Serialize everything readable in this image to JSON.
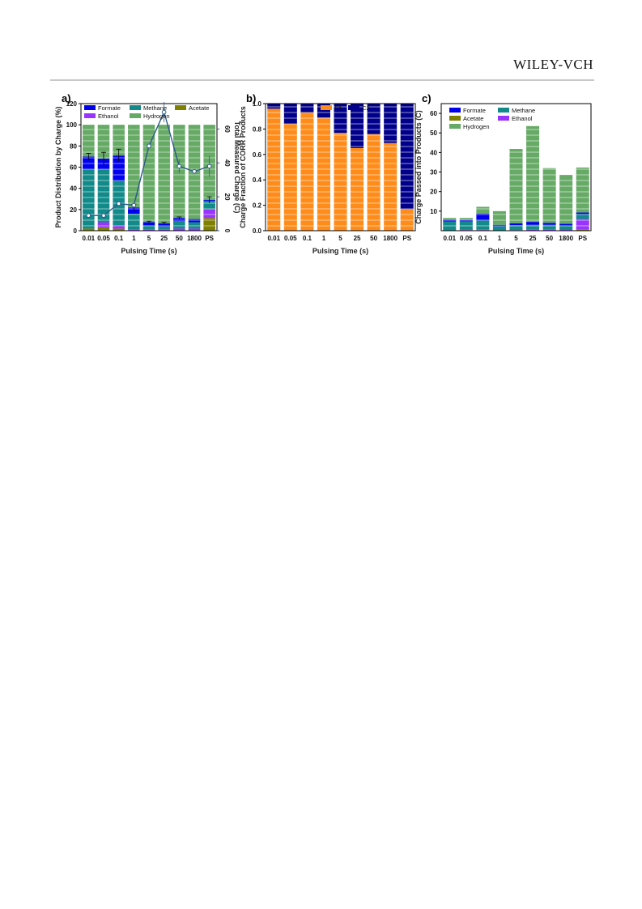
{
  "header": {
    "publisher": "WILEY-VCH"
  },
  "chart_data": [
    {
      "panel": "a)",
      "type": "bar",
      "stacked": true,
      "categories": [
        "0.01",
        "0.05",
        "0.1",
        "1",
        "5",
        "25",
        "50",
        "1800",
        "PS"
      ],
      "xlabel": "Pulsing Time (s)",
      "ylabel": "Product Distribution by Charge (%)",
      "ylim": [
        0,
        120
      ],
      "yticks": [
        0,
        20,
        40,
        60,
        80,
        100,
        120
      ],
      "y2label": "Total Measured Charge (C)",
      "y2lim": [
        0,
        75
      ],
      "y2ticks": [
        0,
        20,
        40,
        60
      ],
      "legend": [
        "Formate",
        "Methane",
        "Acetate",
        "Ethanol",
        "Hydrogen"
      ],
      "series": [
        {
          "name": "Acetate",
          "color": "#7f7f00",
          "values": [
            2,
            3,
            2,
            0,
            0,
            0,
            0,
            0,
            12
          ]
        },
        {
          "name": "Ethanol",
          "color": "#9933ff",
          "values": [
            0,
            5,
            3,
            1,
            1,
            1,
            2,
            2,
            8
          ]
        },
        {
          "name": "Methane",
          "color": "#138a8a",
          "values": [
            56,
            50,
            42,
            15,
            4,
            3,
            7,
            6,
            8
          ]
        },
        {
          "name": "Formate",
          "color": "#0000ee",
          "values": [
            12,
            10,
            24,
            6,
            3,
            3,
            3,
            3,
            1
          ]
        },
        {
          "name": "Hydrogen",
          "color": "#66aa66",
          "values": [
            30,
            32,
            29,
            78,
            92,
            93,
            88,
            89,
            71
          ]
        }
      ],
      "errorbars": [
        3,
        6,
        6,
        3,
        1,
        1,
        1,
        0,
        3
      ],
      "line": {
        "name": "Total Measured Charge",
        "color": "#2e5a88",
        "values": [
          9,
          9,
          16,
          15,
          50,
          70,
          38,
          35,
          38
        ],
        "errors": [
          0,
          0,
          0,
          0,
          0,
          6,
          4,
          0,
          6
        ]
      }
    },
    {
      "panel": "b)",
      "type": "bar",
      "stacked": true,
      "categories": [
        "0.01",
        "0.05",
        "0.1",
        "1",
        "5",
        "25",
        "50",
        "1800",
        "PS"
      ],
      "xlabel": "Pulsing Time (s)",
      "ylabel": "Charge Fraction of CORR Products",
      "ylim": [
        0,
        1.0
      ],
      "yticks": [
        "0.0",
        "0.2",
        "0.4",
        "0.6",
        "0.8",
        "1.0"
      ],
      "legend": [
        "C1",
        "C2"
      ],
      "series": [
        {
          "name": "C1",
          "color": "#ff8c1a",
          "values": [
            0.96,
            0.84,
            0.93,
            0.89,
            0.77,
            0.65,
            0.76,
            0.69,
            0.17
          ]
        },
        {
          "name": "C2",
          "color": "#00008b",
          "values": [
            0.04,
            0.16,
            0.07,
            0.11,
            0.23,
            0.35,
            0.24,
            0.31,
            0.83
          ]
        }
      ]
    },
    {
      "panel": "c)",
      "type": "bar",
      "stacked": true,
      "categories": [
        "0.01",
        "0.05",
        "0.1",
        "1",
        "5",
        "25",
        "50",
        "1800",
        "PS"
      ],
      "xlabel": "Pulsing Time (s)",
      "ylabel": "Charge Passed into Products (C)",
      "ylim": [
        0,
        65
      ],
      "yticks": [
        10,
        20,
        30,
        40,
        50,
        60
      ],
      "legend": [
        "Formate",
        "Methane",
        "Acetate",
        "Ethanol",
        "Hydrogen"
      ],
      "series": [
        {
          "name": "Acetate",
          "color": "#7f7f00",
          "values": [
            0.2,
            0.3,
            0.3,
            0,
            0,
            0,
            0,
            0,
            0.5
          ]
        },
        {
          "name": "Ethanol",
          "color": "#9933ff",
          "values": [
            0,
            0.3,
            0.4,
            0.2,
            0.3,
            0.5,
            0.5,
            0.4,
            5.5
          ]
        },
        {
          "name": "Methane",
          "color": "#138a8a",
          "values": [
            4.5,
            4.2,
            4.5,
            2,
            2.5,
            2.5,
            2.5,
            2.2,
            2.5
          ]
        },
        {
          "name": "Formate",
          "color": "#0000ee",
          "values": [
            1,
            0.7,
            3.5,
            0.8,
            1,
            1.5,
            1,
            0.9,
            0.8
          ]
        },
        {
          "name": "Hydrogen",
          "color": "#66aa66",
          "values": [
            0.8,
            1,
            3.5,
            7,
            38,
            49,
            28,
            25,
            23
          ]
        }
      ]
    }
  ]
}
